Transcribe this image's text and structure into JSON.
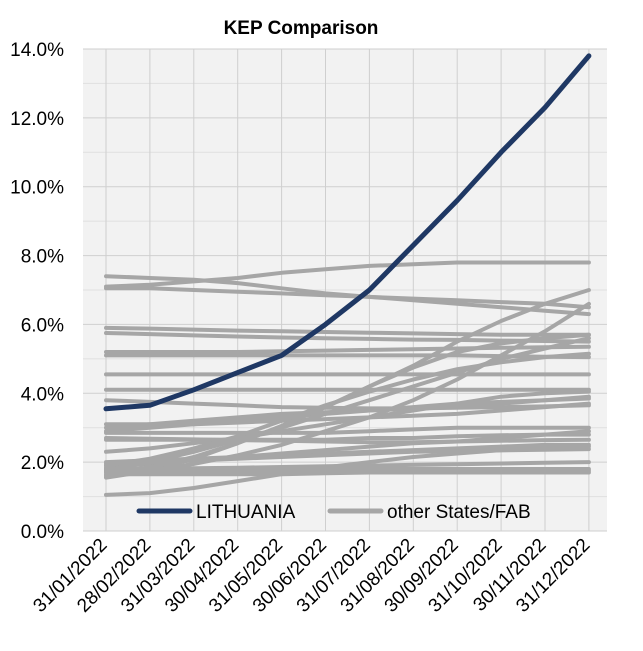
{
  "chart_data": {
    "type": "line",
    "title": "KEP Comparison",
    "xlabel": "",
    "ylabel": "",
    "ylim": [
      0,
      0.14
    ],
    "y_ticks": [
      0,
      0.02,
      0.04,
      0.06,
      0.08,
      0.1,
      0.12,
      0.14
    ],
    "y_tick_labels": [
      "0.0%",
      "2.0%",
      "4.0%",
      "6.0%",
      "8.0%",
      "10.0%",
      "12.0%",
      "14.0%"
    ],
    "x": [
      "31/01/2022",
      "28/02/2022",
      "31/03/2022",
      "30/04/2022",
      "31/05/2022",
      "30/06/2022",
      "31/07/2022",
      "31/08/2022",
      "30/09/2022",
      "31/10/2022",
      "30/11/2022",
      "31/12/2022"
    ],
    "grid": true,
    "legend_position": "bottom-inside",
    "legend": [
      "LITHUANIA",
      "other States/FAB"
    ],
    "series": [
      {
        "name": "LITHUANIA",
        "color": "#1f3864",
        "highlight": true,
        "values": [
          0.0355,
          0.0365,
          0.041,
          0.046,
          0.051,
          0.06,
          0.07,
          0.083,
          0.096,
          0.11,
          0.123,
          0.138
        ]
      },
      {
        "name": "other States/FAB",
        "color": "#a6a6a6",
        "values": [
          0.074,
          0.0735,
          0.073,
          0.072,
          0.0705,
          0.069,
          0.068,
          0.067,
          0.066,
          0.065,
          0.064,
          0.063
        ]
      },
      {
        "name": "other States/FAB",
        "color": "#a6a6a6",
        "values": [
          0.071,
          0.0715,
          0.0725,
          0.0735,
          0.075,
          0.076,
          0.077,
          0.0775,
          0.078,
          0.078,
          0.078,
          0.078
        ]
      },
      {
        "name": "other States/FAB",
        "color": "#a6a6a6",
        "values": [
          0.0705,
          0.0705,
          0.07,
          0.0695,
          0.069,
          0.0685,
          0.068,
          0.0675,
          0.067,
          0.0665,
          0.066,
          0.065
        ]
      },
      {
        "name": "other States/FAB",
        "color": "#a6a6a6",
        "values": [
          0.059,
          0.0588,
          0.0585,
          0.0582,
          0.058,
          0.0578,
          0.0576,
          0.0574,
          0.0572,
          0.057,
          0.057,
          0.057
        ]
      },
      {
        "name": "other States/FAB",
        "color": "#a6a6a6",
        "values": [
          0.0575,
          0.0572,
          0.0568,
          0.0565,
          0.0562,
          0.056,
          0.0558,
          0.0556,
          0.0555,
          0.0553,
          0.0552,
          0.055
        ]
      },
      {
        "name": "other States/FAB",
        "color": "#a6a6a6",
        "values": [
          0.052,
          0.052,
          0.052,
          0.052,
          0.0522,
          0.0524,
          0.0526,
          0.0528,
          0.053,
          0.0532,
          0.0534,
          0.0535
        ]
      },
      {
        "name": "other States/FAB",
        "color": "#a6a6a6",
        "values": [
          0.051,
          0.051,
          0.051,
          0.051,
          0.051,
          0.051,
          0.051,
          0.051,
          0.051,
          0.0508,
          0.0506,
          0.0505
        ]
      },
      {
        "name": "other States/FAB",
        "color": "#a6a6a6",
        "values": [
          0.0455,
          0.0455,
          0.0455,
          0.0455,
          0.0455,
          0.0455,
          0.0455,
          0.0455,
          0.0455,
          0.0455,
          0.0455,
          0.0455
        ]
      },
      {
        "name": "other States/FAB",
        "color": "#a6a6a6",
        "values": [
          0.041,
          0.041,
          0.041,
          0.041,
          0.041,
          0.041,
          0.041,
          0.041,
          0.041,
          0.041,
          0.041,
          0.041
        ]
      },
      {
        "name": "other States/FAB",
        "color": "#a6a6a6",
        "values": [
          0.038,
          0.0375,
          0.037,
          0.0365,
          0.036,
          0.0358,
          0.0356,
          0.0356,
          0.0358,
          0.036,
          0.0362,
          0.0365
        ]
      },
      {
        "name": "other States/FAB",
        "color": "#a6a6a6",
        "values": [
          0.03,
          0.031,
          0.032,
          0.033,
          0.034,
          0.0345,
          0.035,
          0.0355,
          0.036,
          0.037,
          0.038,
          0.039
        ]
      },
      {
        "name": "other States/FAB",
        "color": "#a6a6a6",
        "values": [
          0.031,
          0.031,
          0.031,
          0.0315,
          0.032,
          0.0325,
          0.033,
          0.0335,
          0.034,
          0.035,
          0.036,
          0.037
        ]
      },
      {
        "name": "other States/FAB",
        "color": "#a6a6a6",
        "values": [
          0.029,
          0.03,
          0.031,
          0.032,
          0.033,
          0.034,
          0.035,
          0.036,
          0.037,
          0.0375,
          0.038,
          0.0385
        ]
      },
      {
        "name": "other States/FAB",
        "color": "#a6a6a6",
        "values": [
          0.0285,
          0.0285,
          0.0285,
          0.0285,
          0.0285,
          0.0285,
          0.029,
          0.0295,
          0.03,
          0.03,
          0.03,
          0.03
        ]
      },
      {
        "name": "other States/FAB",
        "color": "#a6a6a6",
        "values": [
          0.0265,
          0.0265,
          0.0265,
          0.0265,
          0.0265,
          0.0265,
          0.027,
          0.027,
          0.0275,
          0.0278,
          0.028,
          0.028
        ]
      },
      {
        "name": "other States/FAB",
        "color": "#a6a6a6",
        "values": [
          0.027,
          0.0268,
          0.0266,
          0.0264,
          0.0262,
          0.026,
          0.0258,
          0.0258,
          0.026,
          0.0262,
          0.0264,
          0.0265
        ]
      },
      {
        "name": "other States/FAB",
        "color": "#a6a6a6",
        "values": [
          0.023,
          0.024,
          0.0255,
          0.027,
          0.029,
          0.031,
          0.033,
          0.035,
          0.037,
          0.039,
          0.04,
          0.0405
        ]
      },
      {
        "name": "other States/FAB",
        "color": "#a6a6a6",
        "values": [
          0.02,
          0.0205,
          0.021,
          0.0215,
          0.022,
          0.0225,
          0.023,
          0.0235,
          0.024,
          0.0245,
          0.025,
          0.025
        ]
      },
      {
        "name": "other States/FAB",
        "color": "#a6a6a6",
        "values": [
          0.0185,
          0.0195,
          0.0205,
          0.0215,
          0.0225,
          0.0235,
          0.0245,
          0.0255,
          0.026,
          0.027,
          0.028,
          0.029
        ]
      },
      {
        "name": "other States/FAB",
        "color": "#a6a6a6",
        "values": [
          0.0175,
          0.02,
          0.023,
          0.0265,
          0.03,
          0.034,
          0.038,
          0.042,
          0.046,
          0.05,
          0.053,
          0.056
        ]
      },
      {
        "name": "other States/FAB",
        "color": "#a6a6a6",
        "values": [
          0.016,
          0.0175,
          0.0195,
          0.022,
          0.025,
          0.029,
          0.033,
          0.038,
          0.044,
          0.051,
          0.058,
          0.066
        ]
      },
      {
        "name": "other States/FAB",
        "color": "#a6a6a6",
        "values": [
          0.0155,
          0.0175,
          0.021,
          0.0255,
          0.0305,
          0.036,
          0.042,
          0.048,
          0.055,
          0.061,
          0.066,
          0.07
        ]
      },
      {
        "name": "other States/FAB",
        "color": "#a6a6a6",
        "values": [
          0.017,
          0.0185,
          0.0215,
          0.0255,
          0.0305,
          0.036,
          0.042,
          0.0475,
          0.052,
          0.0545,
          0.056,
          0.057
        ]
      },
      {
        "name": "other States/FAB",
        "color": "#a6a6a6",
        "values": [
          0.019,
          0.021,
          0.024,
          0.0275,
          0.032,
          0.0365,
          0.0405,
          0.044,
          0.047,
          0.049,
          0.0505,
          0.0515
        ]
      },
      {
        "name": "other States/FAB",
        "color": "#a6a6a6",
        "values": [
          0.0195,
          0.02,
          0.0205,
          0.021,
          0.0215,
          0.022,
          0.0225,
          0.023,
          0.0232,
          0.0234,
          0.0236,
          0.0238
        ]
      },
      {
        "name": "other States/FAB",
        "color": "#a6a6a6",
        "values": [
          0.018,
          0.018,
          0.0182,
          0.0184,
          0.0186,
          0.0188,
          0.019,
          0.0192,
          0.0194,
          0.0196,
          0.0198,
          0.02
        ]
      },
      {
        "name": "other States/FAB",
        "color": "#a6a6a6",
        "values": [
          0.018,
          0.018,
          0.018,
          0.018,
          0.018,
          0.018,
          0.018,
          0.018,
          0.018,
          0.018,
          0.018,
          0.018
        ]
      },
      {
        "name": "other States/FAB",
        "color": "#a6a6a6",
        "values": [
          0.0175,
          0.0172,
          0.017,
          0.017,
          0.017,
          0.017,
          0.017,
          0.0172,
          0.0174,
          0.0175,
          0.0175,
          0.0175
        ]
      },
      {
        "name": "other States/FAB",
        "color": "#a6a6a6",
        "values": [
          0.0165,
          0.0165,
          0.0165,
          0.0165,
          0.0165,
          0.0168,
          0.017,
          0.017,
          0.017,
          0.017,
          0.017,
          0.017
        ]
      },
      {
        "name": "other States/FAB",
        "color": "#a6a6a6",
        "values": [
          0.0105,
          0.011,
          0.0125,
          0.0145,
          0.0165,
          0.0185,
          0.02,
          0.0215,
          0.0225,
          0.0235,
          0.024,
          0.0245
        ]
      }
    ]
  }
}
